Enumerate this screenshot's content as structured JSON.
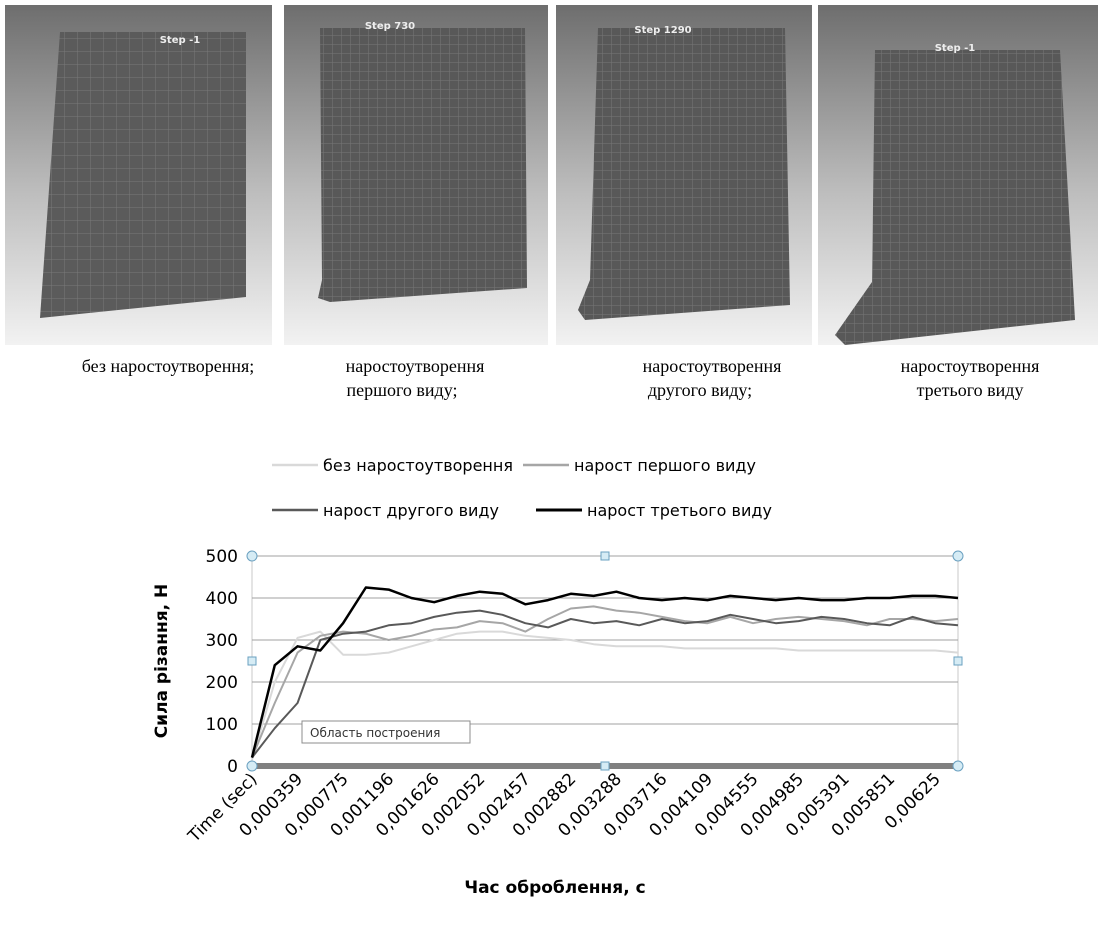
{
  "panels": [
    {
      "step": "Step  -1",
      "caption": [
        "без наростоутворення;"
      ]
    },
    {
      "step": "Step  730",
      "caption": [
        "наростоутворення",
        "першого виду;"
      ]
    },
    {
      "step": "Step  1290",
      "caption": [
        "наростоутворення",
        "другого виду;"
      ]
    },
    {
      "step": "Step  -1",
      "caption": [
        "наростоутворення",
        "третього виду"
      ]
    }
  ],
  "chart_data": {
    "type": "line",
    "xlabel": "Час оброблення, с",
    "ylabel": "Сила різання, Н",
    "tooltip": "Область построения",
    "categories": [
      "Time (sec)",
      null,
      "0,000359",
      null,
      "0,000775",
      null,
      "0,001196",
      null,
      "0,001626",
      null,
      "0,002052",
      null,
      "0,002457",
      null,
      "0,002882",
      null,
      "0,003288",
      null,
      "0,003716",
      null,
      "0,004109",
      null,
      "0,004555",
      null,
      "0,004985",
      null,
      "0,005391",
      null,
      "0,005851",
      null,
      "0,00625",
      null
    ],
    "series": [
      {
        "name": "без наростоутворення",
        "color": "#d9d9d9",
        "values": [
          15,
          200,
          305,
          320,
          265,
          265,
          270,
          285,
          300,
          315,
          320,
          320,
          310,
          305,
          300,
          290,
          285,
          285,
          285,
          280,
          280,
          280,
          280,
          280,
          275,
          275,
          275,
          275,
          275,
          275,
          275,
          270
        ]
      },
      {
        "name": "нарост першого виду",
        "color": "#a6a6a6",
        "values": [
          20,
          150,
          270,
          310,
          320,
          315,
          300,
          310,
          325,
          330,
          345,
          340,
          320,
          350,
          375,
          380,
          370,
          365,
          355,
          345,
          340,
          355,
          340,
          350,
          355,
          350,
          345,
          335,
          350,
          350,
          345,
          350
        ]
      },
      {
        "name": "нарост другого виду",
        "color": "#595959",
        "values": [
          20,
          90,
          150,
          300,
          315,
          320,
          335,
          340,
          355,
          365,
          370,
          360,
          340,
          330,
          350,
          340,
          345,
          335,
          350,
          340,
          345,
          360,
          350,
          340,
          345,
          355,
          350,
          340,
          335,
          355,
          340,
          335
        ]
      },
      {
        "name": "нарост третього виду",
        "color": "#000000",
        "values": [
          20,
          240,
          285,
          275,
          340,
          425,
          420,
          400,
          390,
          405,
          415,
          410,
          385,
          395,
          410,
          405,
          415,
          400,
          395,
          400,
          395,
          405,
          400,
          395,
          400,
          395,
          395,
          400,
          400,
          405,
          405,
          400
        ]
      }
    ],
    "ylim": [
      0,
      500
    ],
    "yticks": [
      0,
      100,
      200,
      300,
      400,
      500
    ],
    "grid": true,
    "legend": "top"
  }
}
